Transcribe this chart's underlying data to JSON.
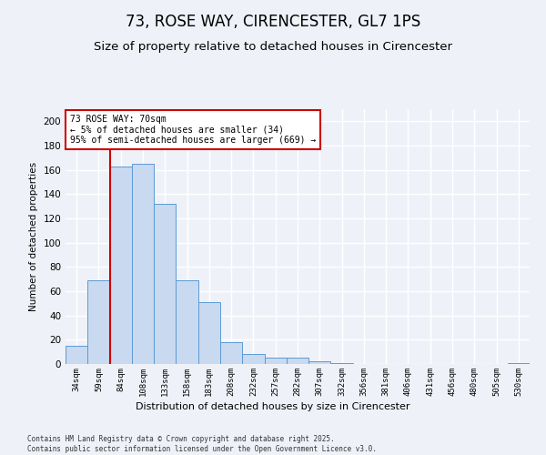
{
  "title": "73, ROSE WAY, CIRENCESTER, GL7 1PS",
  "subtitle": "Size of property relative to detached houses in Cirencester",
  "xlabel": "Distribution of detached houses by size in Cirencester",
  "ylabel": "Number of detached properties",
  "bar_values": [
    15,
    69,
    163,
    165,
    132,
    69,
    51,
    18,
    8,
    5,
    5,
    2,
    1,
    0,
    0,
    0,
    0,
    0,
    0,
    0,
    1
  ],
  "bar_labels": [
    "34sqm",
    "59sqm",
    "84sqm",
    "108sqm",
    "133sqm",
    "158sqm",
    "183sqm",
    "208sqm",
    "232sqm",
    "257sqm",
    "282sqm",
    "307sqm",
    "332sqm",
    "356sqm",
    "381sqm",
    "406sqm",
    "431sqm",
    "456sqm",
    "480sqm",
    "505sqm",
    "530sqm"
  ],
  "bar_color": "#c9d9f0",
  "bar_edge_color": "#5b9bd5",
  "red_line_x": 1.5,
  "red_line_color": "#cc0000",
  "annotation_text": "73 ROSE WAY: 70sqm\n← 5% of detached houses are smaller (34)\n95% of semi-detached houses are larger (669) →",
  "annotation_box_color": "#ffffff",
  "annotation_box_edge": "#cc0000",
  "ylim": [
    0,
    210
  ],
  "yticks": [
    0,
    20,
    40,
    60,
    80,
    100,
    120,
    140,
    160,
    180,
    200
  ],
  "footer_line1": "Contains HM Land Registry data © Crown copyright and database right 2025.",
  "footer_line2": "Contains public sector information licensed under the Open Government Licence v3.0.",
  "background_color": "#eef2f8",
  "plot_bg_color": "#eef2f8",
  "grid_color": "#ffffff",
  "title_fontsize": 12,
  "subtitle_fontsize": 9.5
}
